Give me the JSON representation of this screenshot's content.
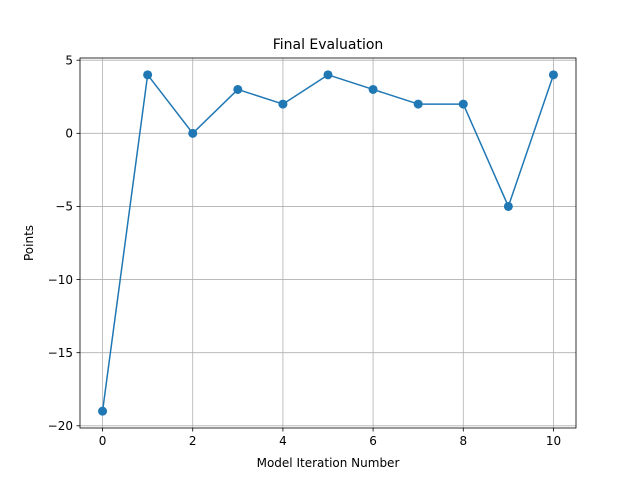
{
  "chart_data": {
    "type": "line",
    "title": "Final Evaluation",
    "xlabel": "Model Iteration Number",
    "ylabel": "Points",
    "x": [
      0,
      1,
      2,
      3,
      4,
      5,
      6,
      7,
      8,
      9,
      10
    ],
    "series": [
      {
        "values": [
          -19,
          4,
          0,
          3,
          2,
          4,
          3,
          2,
          2,
          -5,
          4
        ],
        "color": "#1f77b4",
        "marker": "circle"
      }
    ],
    "xlim": [
      -0.5,
      10.5
    ],
    "ylim": [
      -20.15,
      5.15
    ],
    "xticks": [
      0,
      2,
      4,
      6,
      8,
      10
    ],
    "yticks": [
      5,
      0,
      -5,
      -10,
      -15,
      -20
    ],
    "xtick_labels": [
      "0",
      "2",
      "4",
      "6",
      "8",
      "10"
    ],
    "ytick_labels": [
      "5",
      "0",
      "−5",
      "−10",
      "−15",
      "−20"
    ],
    "grid": true,
    "legend": false
  }
}
